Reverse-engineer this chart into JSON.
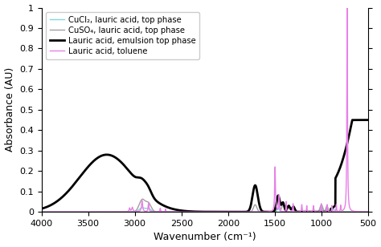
{
  "xmin": 4000,
  "xmax": 500,
  "ymin": 0,
  "ymax": 1.0,
  "xlabel": "Wavenumber (cm⁻¹)",
  "ylabel": "Absorbance (AU)",
  "legend": [
    {
      "label": "CuCl₂, lauric acid, top phase",
      "color": "#80d8d8",
      "lw": 1.0
    },
    {
      "label": "CuSO₄, lauric acid, top phase",
      "color": "#a0a0a0",
      "lw": 1.0
    },
    {
      "label": "Lauric acid, emulsion top phase",
      "color": "#000000",
      "lw": 2.0
    },
    {
      "label": "Lauric acid, toluene",
      "color": "#e880e8",
      "lw": 1.0
    }
  ],
  "yticks": [
    0,
    0.1,
    0.2,
    0.3,
    0.4,
    0.5,
    0.6,
    0.7,
    0.8,
    0.9,
    1.0
  ],
  "xticks": [
    4000,
    3500,
    3000,
    2500,
    2000,
    1500,
    1000,
    500
  ],
  "figsize": [
    4.74,
    3.08
  ],
  "dpi": 100
}
